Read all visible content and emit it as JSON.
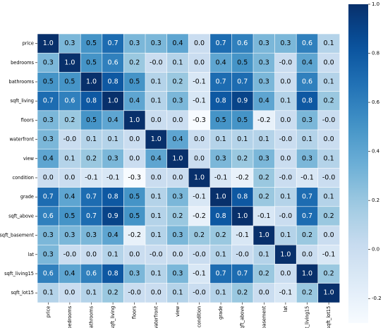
{
  "chart_data": {
    "type": "heatmap",
    "title": "",
    "xlabel": "",
    "ylabel": "",
    "labels": [
      "price",
      "bedrooms",
      "bathrooms",
      "sqft_living",
      "floors",
      "waterfront",
      "view",
      "condition",
      "grade",
      "sqft_above",
      "sqft_basement",
      "lat",
      "sqft_living15",
      "sqft_lot15"
    ],
    "matrix": [
      [
        "1.0",
        "0.3",
        "0.5",
        "0.7",
        "0.3",
        "0.3",
        "0.4",
        "0.0",
        "0.7",
        "0.6",
        "0.3",
        "0.3",
        "0.6",
        "0.1"
      ],
      [
        "0.3",
        "1.0",
        "0.5",
        "0.6",
        "0.2",
        "-0.0",
        "0.1",
        "0.0",
        "0.4",
        "0.5",
        "0.3",
        "-0.0",
        "0.4",
        "0.0"
      ],
      [
        "0.5",
        "0.5",
        "1.0",
        "0.8",
        "0.5",
        "0.1",
        "0.2",
        "-0.1",
        "0.7",
        "0.7",
        "0.3",
        "0.0",
        "0.6",
        "0.1"
      ],
      [
        "0.7",
        "0.6",
        "0.8",
        "1.0",
        "0.4",
        "0.1",
        "0.3",
        "-0.1",
        "0.8",
        "0.9",
        "0.4",
        "0.1",
        "0.8",
        "0.2"
      ],
      [
        "0.3",
        "0.2",
        "0.5",
        "0.4",
        "1.0",
        "0.0",
        "0.0",
        "-0.3",
        "0.5",
        "0.5",
        "-0.2",
        "0.0",
        "0.3",
        "-0.0"
      ],
      [
        "0.3",
        "-0.0",
        "0.1",
        "0.1",
        "0.0",
        "1.0",
        "0.4",
        "0.0",
        "0.1",
        "0.1",
        "0.1",
        "-0.0",
        "0.1",
        "0.0"
      ],
      [
        "0.4",
        "0.1",
        "0.2",
        "0.3",
        "0.0",
        "0.4",
        "1.0",
        "0.0",
        "0.3",
        "0.2",
        "0.3",
        "0.0",
        "0.3",
        "0.1"
      ],
      [
        "0.0",
        "0.0",
        "-0.1",
        "-0.1",
        "-0.3",
        "0.0",
        "0.0",
        "1.0",
        "-0.1",
        "-0.2",
        "0.2",
        "-0.0",
        "-0.1",
        "-0.0"
      ],
      [
        "0.7",
        "0.4",
        "0.7",
        "0.8",
        "0.5",
        "0.1",
        "0.3",
        "-0.1",
        "1.0",
        "0.8",
        "0.2",
        "0.1",
        "0.7",
        "0.1"
      ],
      [
        "0.6",
        "0.5",
        "0.7",
        "0.9",
        "0.5",
        "0.1",
        "0.2",
        "-0.2",
        "0.8",
        "1.0",
        "-0.1",
        "-0.0",
        "0.7",
        "0.2"
      ],
      [
        "0.3",
        "0.3",
        "0.3",
        "0.4",
        "-0.2",
        "0.1",
        "0.3",
        "0.2",
        "0.2",
        "-0.1",
        "1.0",
        "0.1",
        "0.2",
        "0.0"
      ],
      [
        "0.3",
        "-0.0",
        "0.0",
        "0.1",
        "0.0",
        "-0.0",
        "0.0",
        "-0.0",
        "0.1",
        "-0.0",
        "0.1",
        "1.0",
        "0.0",
        "-0.1"
      ],
      [
        "0.6",
        "0.4",
        "0.6",
        "0.8",
        "0.3",
        "0.1",
        "0.3",
        "-0.1",
        "0.7",
        "0.7",
        "0.2",
        "0.0",
        "1.0",
        "0.2"
      ],
      [
        "0.1",
        "0.0",
        "0.1",
        "0.2",
        "-0.0",
        "0.0",
        "0.1",
        "-0.0",
        "0.1",
        "0.2",
        "0.0",
        "-0.1",
        "0.2",
        "1.0"
      ]
    ],
    "colormap": "Blues",
    "vmin": -0.3,
    "vmax": 1.0,
    "colorbar_ticks": [
      "1.0",
      "0.8",
      "0.6",
      "0.4",
      "0.2",
      "0.0",
      "-0.2"
    ]
  },
  "colors": {
    "low": "#f7fbff",
    "high": "#08306b",
    "text_dark": "#000000",
    "text_light": "#ffffff"
  }
}
